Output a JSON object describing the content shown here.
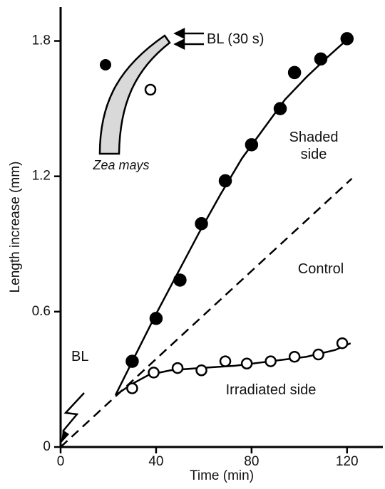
{
  "chart_data": {
    "type": "line",
    "xlabel": "Time (min)",
    "ylabel": "Length increase (mm)",
    "xlim": [
      0,
      135
    ],
    "ylim": [
      0,
      1.95
    ],
    "xticks": [
      0,
      40,
      80,
      120
    ],
    "yticks": [
      0,
      0.6,
      1.2,
      1.8
    ],
    "series": [
      {
        "name": "Shaded side",
        "color": "#000000",
        "marker": "filled",
        "x": [
          30,
          40,
          50,
          59,
          69,
          80,
          92,
          98,
          109,
          120
        ],
        "values": [
          0.38,
          0.57,
          0.74,
          0.99,
          1.18,
          1.34,
          1.5,
          1.66,
          1.72,
          1.81
        ],
        "fit_x": [
          23,
          31,
          40,
          49,
          58,
          67,
          76,
          85,
          94,
          103,
          112,
          121.5
        ],
        "fit_values": [
          0.23,
          0.4,
          0.59,
          0.77,
          0.95,
          1.12,
          1.28,
          1.41,
          1.54,
          1.64,
          1.73,
          1.82
        ]
      },
      {
        "name": "Control",
        "color": "#000000",
        "dashed": true,
        "fit_x": [
          0,
          122
        ],
        "fit_values": [
          0,
          1.19
        ]
      },
      {
        "name": "Irradiated side",
        "color": "#000000",
        "marker": "open",
        "x": [
          30,
          39,
          49,
          59,
          69,
          78,
          88,
          98,
          108,
          118
        ],
        "values": [
          0.26,
          0.33,
          0.35,
          0.34,
          0.38,
          0.37,
          0.38,
          0.4,
          0.41,
          0.46
        ],
        "fit_x": [
          23,
          30,
          37,
          46,
          58,
          73,
          88,
          103,
          115,
          121.5
        ],
        "fit_values": [
          0.23,
          0.28,
          0.32,
          0.34,
          0.35,
          0.36,
          0.38,
          0.4,
          0.43,
          0.46
        ]
      }
    ],
    "annotations": [
      "BL (30 s)",
      "BL",
      "Zea mays"
    ]
  }
}
